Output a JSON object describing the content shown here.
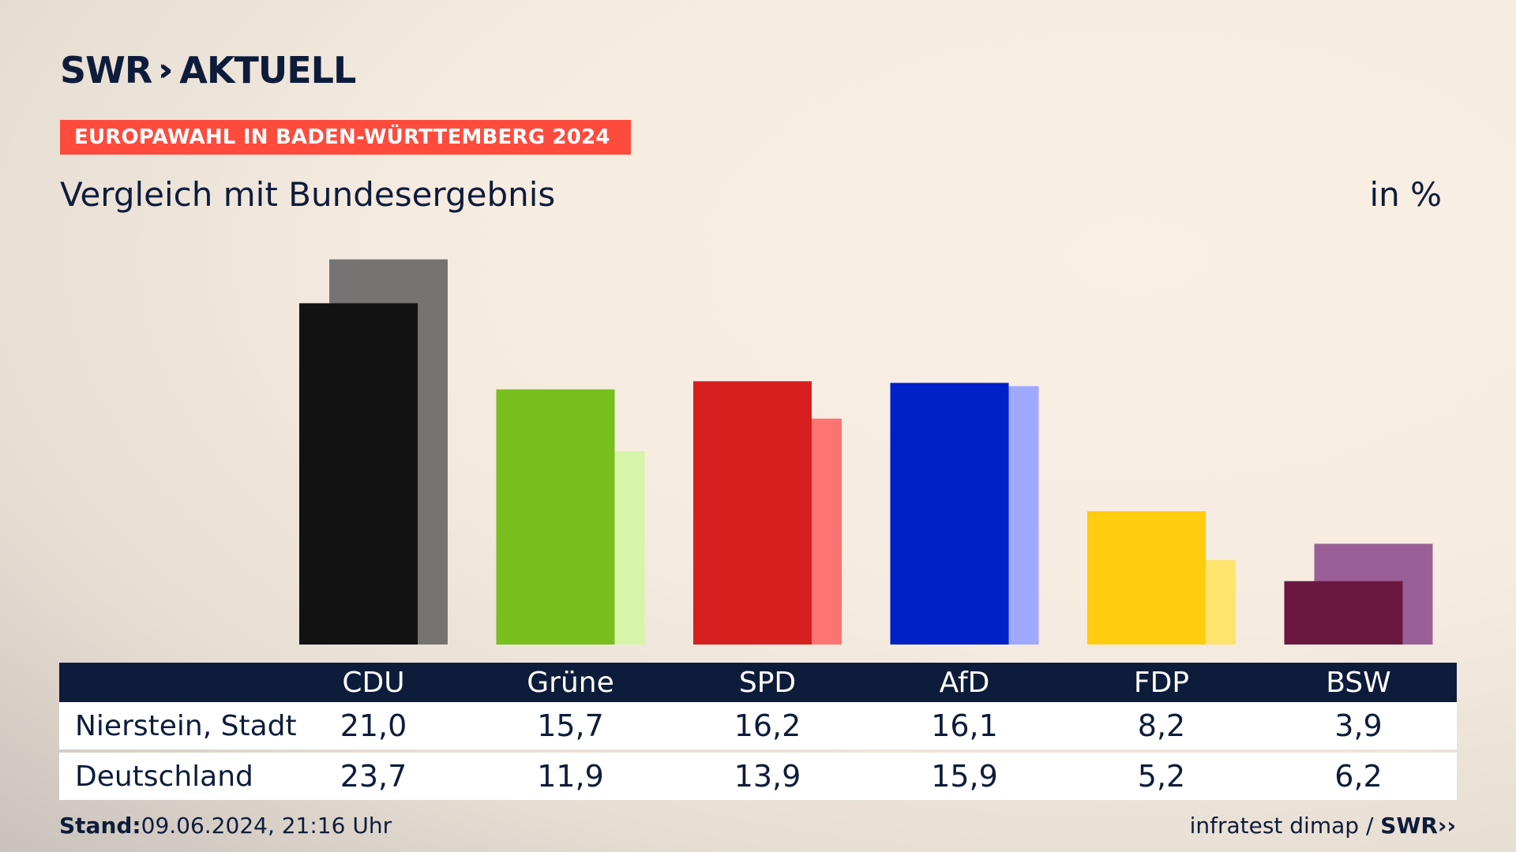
{
  "brand": {
    "name": "SWR",
    "chevrons": "»",
    "product": "AKTUELL"
  },
  "banner": "EUROPAWAHL IN BADEN-WÜRTTEMBERG 2024",
  "subtitle": "Vergleich mit Bundesergebnis",
  "unit": "in %",
  "chart_data": {
    "type": "bar",
    "title": "Vergleich mit Bundesergebnis",
    "unit": "in %",
    "categories": [
      "CDU",
      "Grüne",
      "SPD",
      "AfD",
      "FDP",
      "BSW"
    ],
    "series": [
      {
        "name": "Nierstein, Stadt",
        "values": [
          21.0,
          15.7,
          16.2,
          16.1,
          8.2,
          3.9
        ],
        "colors": [
          "#121212",
          "#78be1c",
          "#d81f20",
          "#0020c8",
          "#ffcc0e",
          "#6b1840"
        ]
      },
      {
        "name": "Deutschland",
        "values": [
          23.7,
          11.9,
          13.9,
          15.9,
          5.2,
          6.2
        ],
        "colors": [
          "#767472",
          "#d6f5aa",
          "#ff7370",
          "#9ea9ff",
          "#ffe36f",
          "#9b5f97"
        ]
      }
    ],
    "ylim": [
      0,
      24
    ],
    "grid": false,
    "legend": "table-below"
  },
  "table": {
    "rows": [
      {
        "label": "Nierstein, Stadt",
        "values": [
          "21,0",
          "15,7",
          "16,2",
          "16,1",
          "8,2",
          "3,9"
        ]
      },
      {
        "label": "Deutschland",
        "values": [
          "23,7",
          "11,9",
          "13,9",
          "15,9",
          "5,2",
          "6,2"
        ]
      }
    ]
  },
  "footer": {
    "stand_label": "Stand:",
    "stand_value": "09.06.2024, 21:16 Uhr",
    "source": "infratest dimap /",
    "source_brand": "SWR"
  }
}
